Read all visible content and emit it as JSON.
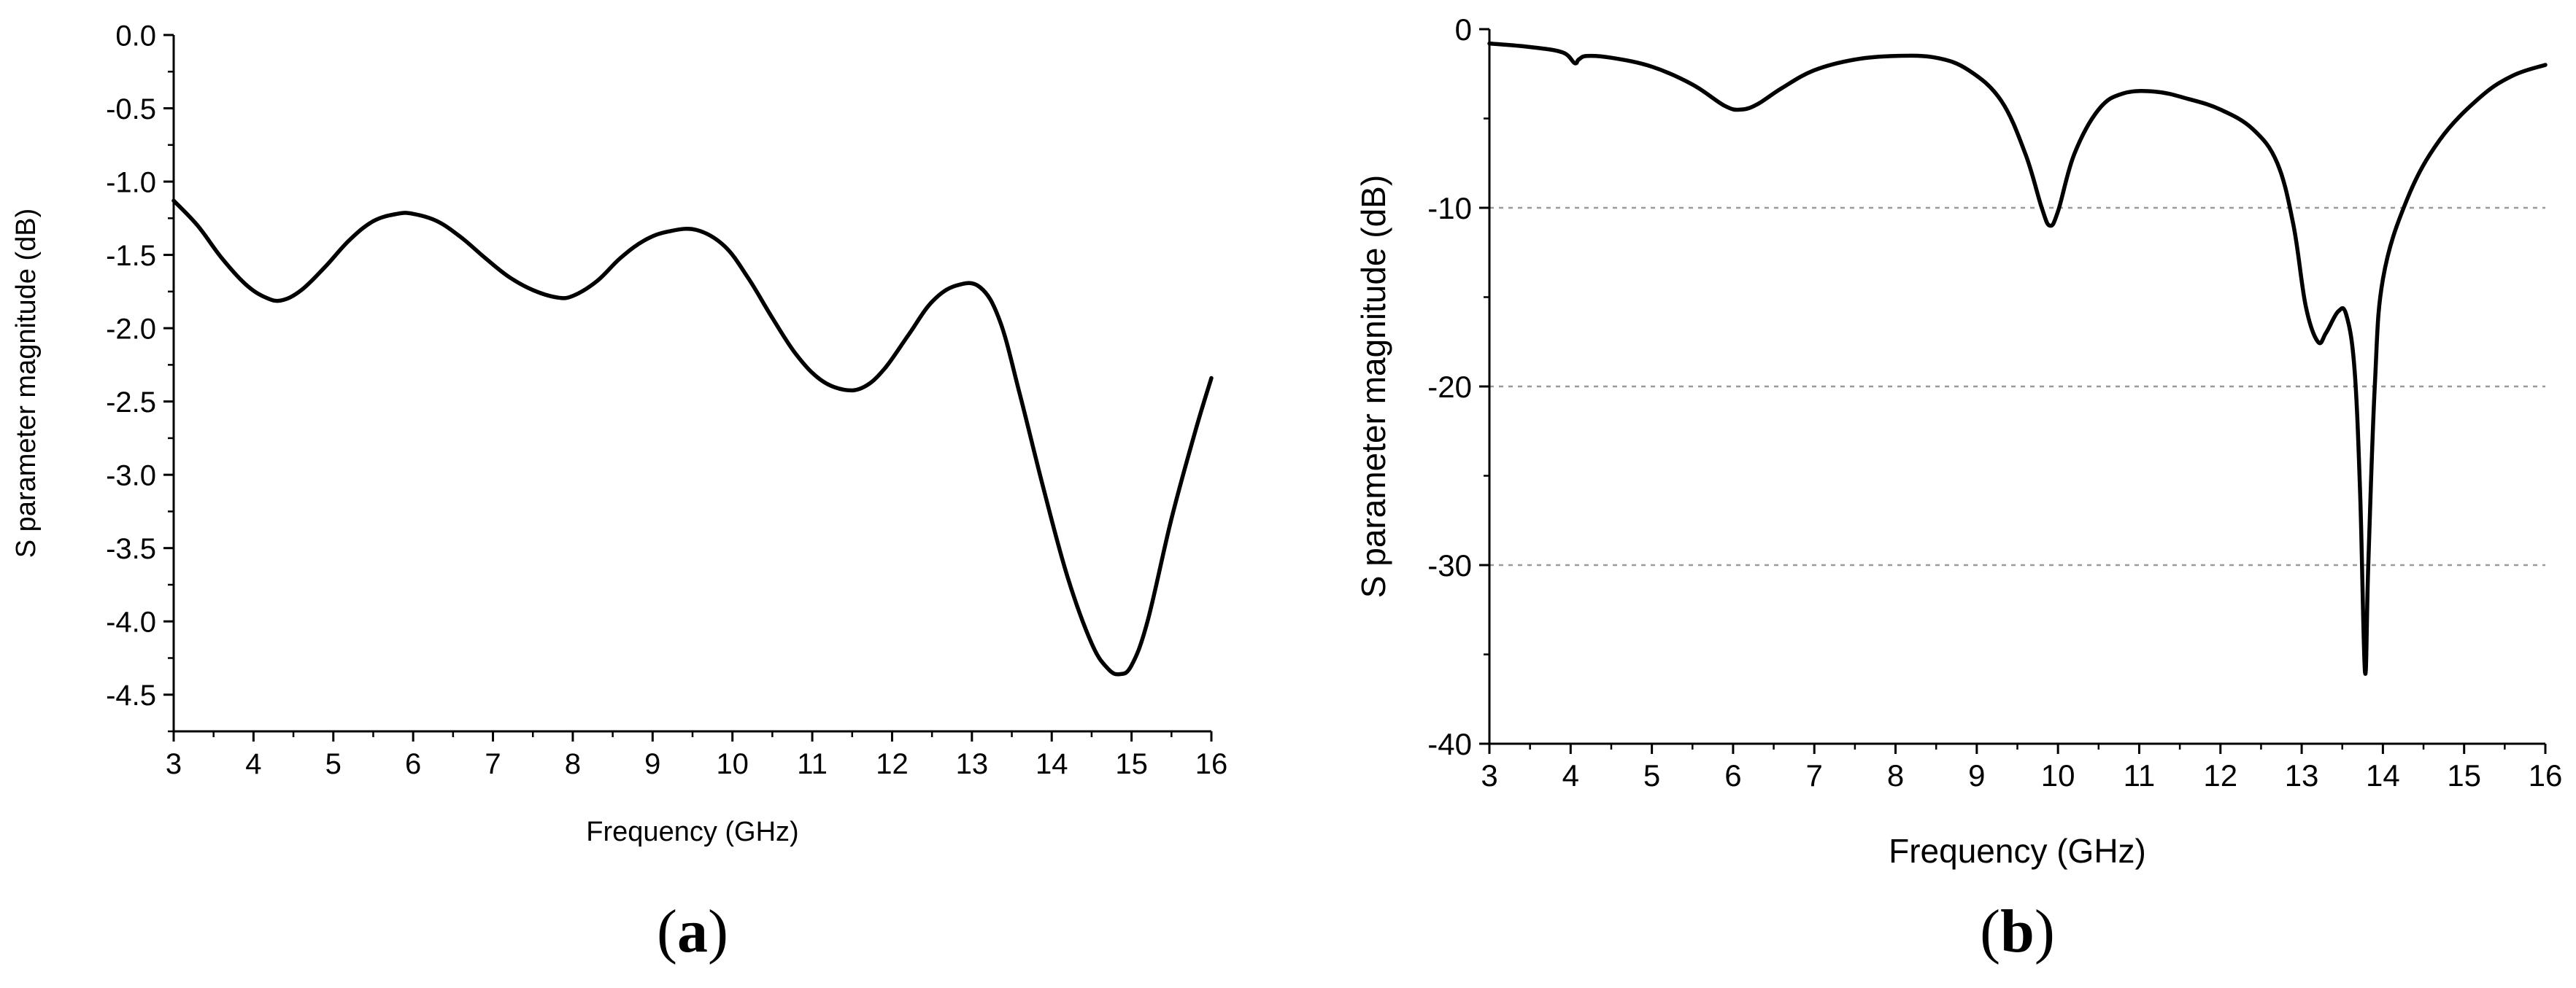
{
  "chart_data": [
    {
      "type": "line",
      "panel_label": "(a)",
      "panel_letter": "a",
      "xlabel": "Frequency (GHz)",
      "ylabel": "S parameter magnitude (dB)",
      "xlim": [
        3,
        16
      ],
      "ylim": [
        -4.75,
        0
      ],
      "x_ticks": [
        3,
        4,
        5,
        6,
        7,
        8,
        9,
        10,
        11,
        12,
        13,
        14,
        15,
        16
      ],
      "y_ticks": [
        0.0,
        -0.5,
        -1.0,
        -1.5,
        -2.0,
        -2.5,
        -3.0,
        -3.5,
        -4.0,
        -4.5
      ],
      "y_tick_labels": [
        "0.0",
        "-0.5",
        "-1.0",
        "-1.5",
        "-2.0",
        "-2.5",
        "-3.0",
        "-3.5",
        "-4.0",
        "-4.5"
      ],
      "grid": false,
      "series": [
        {
          "x": [
            3.0,
            3.3,
            3.6,
            3.9,
            4.15,
            4.35,
            4.6,
            4.9,
            5.2,
            5.5,
            5.8,
            6.0,
            6.3,
            6.6,
            6.9,
            7.2,
            7.5,
            7.8,
            8.0,
            8.3,
            8.6,
            8.9,
            9.2,
            9.55,
            9.9,
            10.2,
            10.5,
            10.8,
            11.1,
            11.4,
            11.65,
            11.9,
            12.2,
            12.5,
            12.8,
            13.1,
            13.35,
            13.6,
            13.9,
            14.2,
            14.5,
            14.7,
            14.85,
            15.0,
            15.2,
            15.5,
            15.8,
            16.0
          ],
          "y": [
            -1.13,
            -1.3,
            -1.52,
            -1.7,
            -1.79,
            -1.81,
            -1.74,
            -1.58,
            -1.4,
            -1.27,
            -1.22,
            -1.22,
            -1.27,
            -1.38,
            -1.52,
            -1.65,
            -1.74,
            -1.79,
            -1.78,
            -1.68,
            -1.52,
            -1.4,
            -1.34,
            -1.33,
            -1.44,
            -1.66,
            -1.93,
            -2.18,
            -2.35,
            -2.42,
            -2.4,
            -2.28,
            -2.05,
            -1.82,
            -1.71,
            -1.72,
            -1.95,
            -2.45,
            -3.1,
            -3.7,
            -4.15,
            -4.32,
            -4.36,
            -4.3,
            -4.0,
            -3.3,
            -2.7,
            -2.34
          ]
        }
      ]
    },
    {
      "type": "line",
      "panel_label": "(b)",
      "panel_letter": "b",
      "xlabel": "Frequency (GHz)",
      "ylabel": "S parameter magnitude (dB)",
      "xlim": [
        3,
        16
      ],
      "ylim": [
        -40,
        0
      ],
      "x_ticks": [
        3,
        4,
        5,
        6,
        7,
        8,
        9,
        10,
        11,
        12,
        13,
        14,
        15,
        16
      ],
      "y_ticks": [
        0,
        -10,
        -20,
        -30,
        -40
      ],
      "y_tick_labels": [
        "0",
        "-10",
        "-20",
        "-30",
        "-40"
      ],
      "grid": true,
      "grid_lines_y": [
        -10,
        -20,
        -30
      ],
      "series": [
        {
          "x": [
            3.0,
            3.5,
            3.9,
            4.05,
            4.1,
            4.2,
            4.5,
            5.0,
            5.5,
            5.9,
            6.1,
            6.3,
            6.6,
            7.0,
            7.5,
            8.0,
            8.5,
            8.9,
            9.3,
            9.6,
            9.8,
            9.9,
            10.0,
            10.2,
            10.5,
            10.8,
            11.2,
            11.6,
            12.0,
            12.4,
            12.7,
            12.9,
            13.05,
            13.2,
            13.3,
            13.45,
            13.55,
            13.65,
            13.72,
            13.78,
            13.82,
            13.9,
            14.0,
            14.3,
            14.7,
            15.2,
            15.6,
            16.0
          ],
          "y": [
            -0.8,
            -1.0,
            -1.3,
            -1.9,
            -1.7,
            -1.5,
            -1.6,
            -2.1,
            -3.1,
            -4.3,
            -4.5,
            -4.2,
            -3.3,
            -2.3,
            -1.7,
            -1.5,
            -1.6,
            -2.3,
            -4.0,
            -7.0,
            -10.0,
            -11.0,
            -10.2,
            -7.0,
            -4.5,
            -3.6,
            -3.5,
            -3.9,
            -4.5,
            -5.6,
            -7.5,
            -11.0,
            -15.5,
            -17.5,
            -17.0,
            -15.8,
            -16.0,
            -19.0,
            -26.0,
            -36.0,
            -30.0,
            -20.0,
            -14.0,
            -9.5,
            -6.2,
            -3.8,
            -2.6,
            -2.0
          ]
        }
      ]
    }
  ]
}
